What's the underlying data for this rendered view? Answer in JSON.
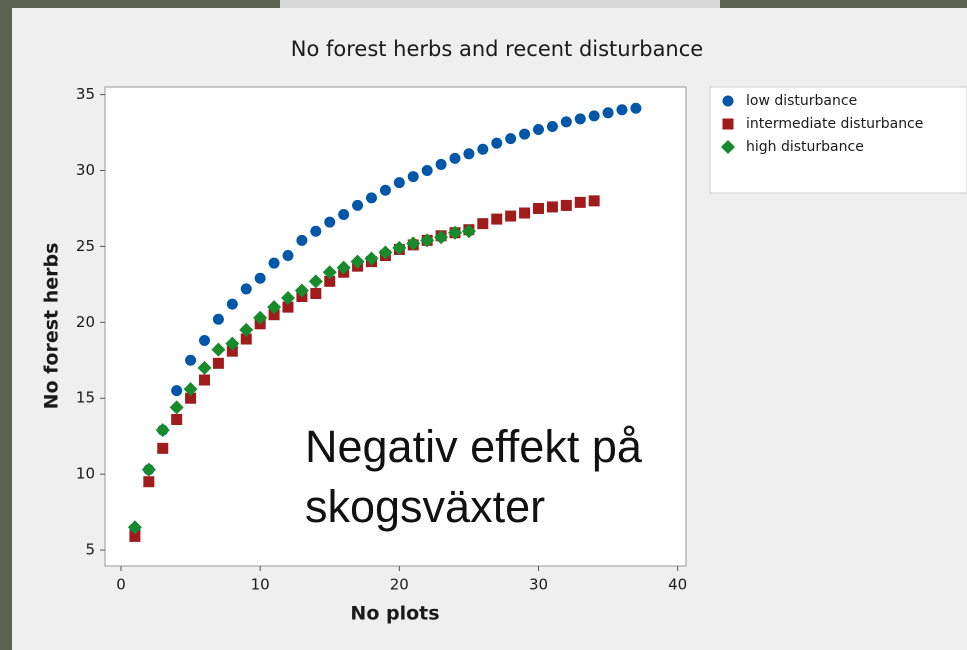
{
  "chart_data": {
    "type": "scatter",
    "title": "No forest herbs and recent disturbance",
    "xlabel": "No plots",
    "ylabel": "No forest herbs",
    "xlim": [
      -1.15,
      40.6
    ],
    "ylim": [
      3.95,
      35.5
    ],
    "xticks": [
      0,
      10,
      20,
      30,
      40
    ],
    "yticks": [
      5,
      10,
      15,
      20,
      25,
      30,
      35
    ],
    "annotations": [
      "Negativ effekt på",
      "skogsväxter"
    ],
    "series": [
      {
        "name": "low disturbance",
        "color": "#0057a8",
        "marker": "circle",
        "x": [
          1,
          2,
          3,
          4,
          5,
          6,
          7,
          8,
          9,
          10,
          11,
          12,
          13,
          14,
          15,
          16,
          17,
          18,
          19,
          20,
          21,
          22,
          23,
          24,
          25,
          26,
          27,
          28,
          29,
          30,
          31,
          32,
          33,
          34,
          35,
          36,
          37
        ],
        "values": [
          6.3,
          10.3,
          12.9,
          15.5,
          17.5,
          18.8,
          20.2,
          21.2,
          22.2,
          22.9,
          23.9,
          24.4,
          25.4,
          26.0,
          26.6,
          27.1,
          27.7,
          28.2,
          28.7,
          29.2,
          29.6,
          30.0,
          30.4,
          30.8,
          31.1,
          31.4,
          31.8,
          32.1,
          32.4,
          32.7,
          32.9,
          33.2,
          33.4,
          33.6,
          33.8,
          34.0,
          34.1
        ]
      },
      {
        "name": "intermediate disturbance",
        "color": "#a01c1c",
        "marker": "square",
        "x": [
          1,
          2,
          3,
          4,
          5,
          6,
          7,
          8,
          9,
          10,
          11,
          12,
          13,
          14,
          15,
          16,
          17,
          18,
          19,
          20,
          21,
          22,
          23,
          24,
          25,
          26,
          27,
          28,
          29,
          30,
          31,
          32,
          33,
          34
        ],
        "values": [
          5.9,
          9.5,
          11.7,
          13.6,
          15.0,
          16.2,
          17.3,
          18.1,
          18.9,
          19.9,
          20.5,
          21.0,
          21.7,
          21.9,
          22.7,
          23.3,
          23.7,
          24.0,
          24.4,
          24.8,
          25.1,
          25.4,
          25.7,
          25.9,
          26.1,
          26.5,
          26.8,
          27.0,
          27.2,
          27.5,
          27.6,
          27.7,
          27.9,
          28.0
        ]
      },
      {
        "name": "high disturbance",
        "color": "#178a2c",
        "marker": "diamond",
        "x": [
          1,
          2,
          3,
          4,
          5,
          6,
          7,
          8,
          9,
          10,
          11,
          12,
          13,
          14,
          15,
          16,
          17,
          18,
          19,
          20,
          21,
          22,
          23,
          24,
          25
        ],
        "values": [
          6.5,
          10.3,
          12.9,
          14.4,
          15.6,
          17.0,
          18.2,
          18.6,
          19.5,
          20.3,
          21.0,
          21.6,
          22.1,
          22.7,
          23.3,
          23.6,
          24.0,
          24.2,
          24.6,
          24.9,
          25.2,
          25.4,
          25.6,
          25.9,
          26.0
        ]
      }
    ]
  }
}
